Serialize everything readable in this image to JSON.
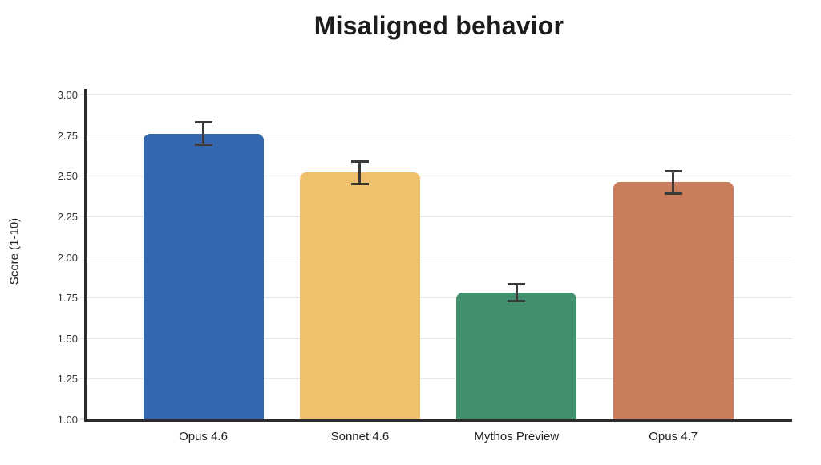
{
  "chart_data": {
    "type": "bar",
    "title": "Misaligned behavior",
    "categories": [
      "Opus 4.6",
      "Sonnet 4.6",
      "Mythos Preview",
      "Opus 4.7"
    ],
    "values": [
      2.76,
      2.52,
      1.78,
      2.46
    ],
    "errors": [
      0.07,
      0.07,
      0.05,
      0.07
    ],
    "bar_colors": [
      "#3467ad",
      "#f0c16c",
      "#42906e",
      "#c97c5c"
    ],
    "xlabel": "",
    "ylabel": "Score (1-10)",
    "ylim": [
      1.0,
      3.0
    ],
    "ytick_labels": [
      "1.00",
      "1.25",
      "1.50",
      "1.75",
      "2.00",
      "2.25",
      "2.50",
      "2.75",
      "3.00"
    ],
    "grid": true,
    "legend_position": "none",
    "error_bar_color": "#3a3a3a",
    "axis_color": "#2b2b2b",
    "grid_color": "#e9e9e9",
    "title_color": "#1c1c1c",
    "background_color": "#ffffff"
  }
}
